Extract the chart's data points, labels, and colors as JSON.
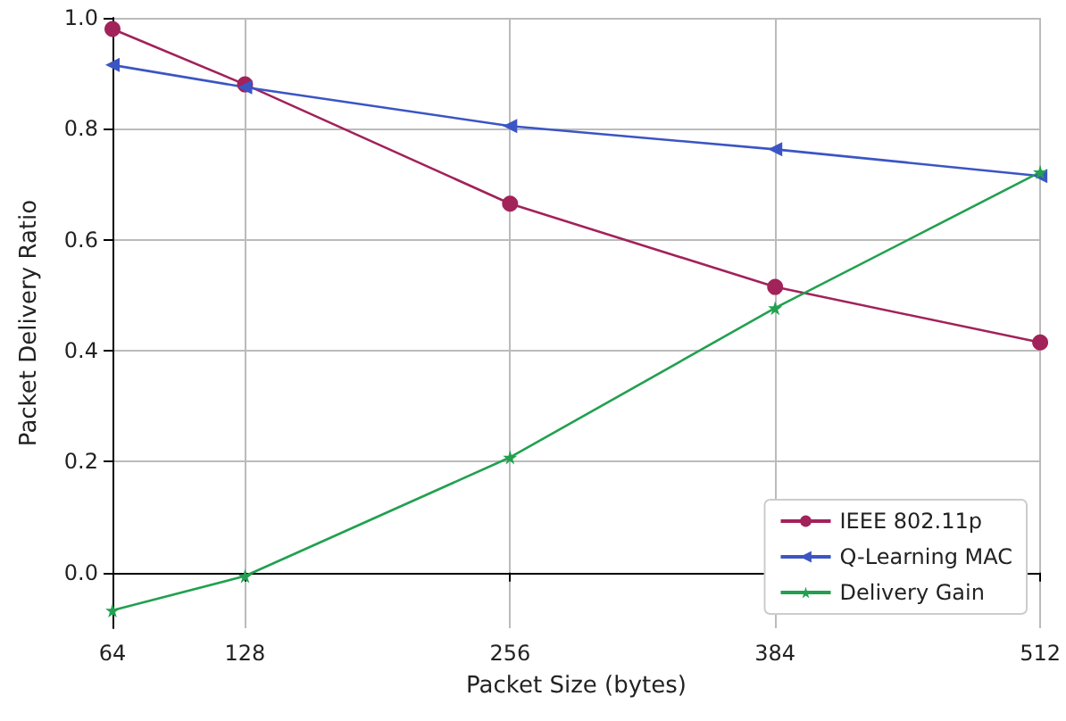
{
  "chart_data": {
    "type": "line",
    "xlabel": "Packet Size (bytes)",
    "ylabel": "Packet Delivery Ratio",
    "x": [
      64,
      128,
      256,
      384,
      512
    ],
    "series": [
      {
        "name": "IEEE 802.11p",
        "color": "#a2225a",
        "marker": "circle",
        "values": [
          0.98,
          0.88,
          0.665,
          0.515,
          0.415
        ]
      },
      {
        "name": "Q-Learning MAC",
        "color": "#3b55c4",
        "marker": "triangle",
        "values": [
          0.915,
          0.875,
          0.805,
          0.763,
          0.715
        ]
      },
      {
        "name": "Delivery Gain",
        "color": "#22a050",
        "marker": "star",
        "values": [
          -0.068,
          -0.006,
          0.208,
          0.477,
          0.722
        ]
      }
    ],
    "xlim": [
      64,
      512
    ],
    "xticks": [
      64,
      128,
      256,
      384,
      512
    ],
    "ylim": [
      -0.1,
      1.0
    ],
    "yticks": [
      {
        "value": 0,
        "label": "0.0"
      },
      {
        "value": 0.2,
        "label": "0.2"
      },
      {
        "value": 0.4,
        "label": "0.4"
      },
      {
        "value": 0.6,
        "label": "0.6"
      },
      {
        "value": 0.8,
        "label": "0.8"
      },
      {
        "value": 1,
        "label": "1.0"
      }
    ],
    "grid": true,
    "legend": "bottom right"
  }
}
